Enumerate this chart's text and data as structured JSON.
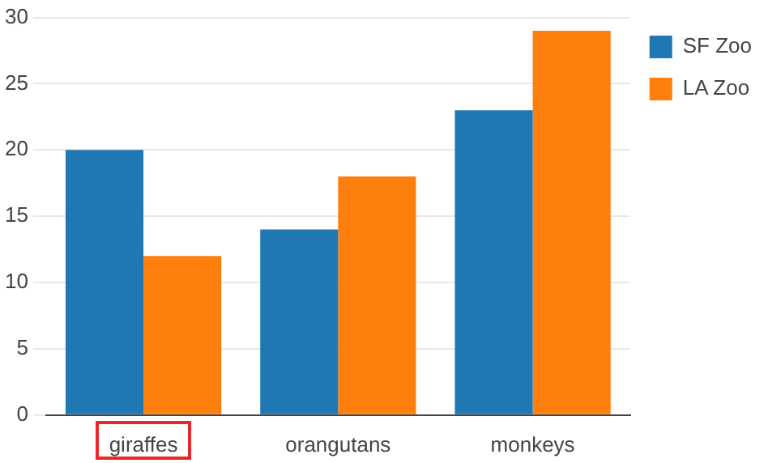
{
  "chart_data": {
    "type": "bar",
    "categories": [
      "giraffes",
      "orangutans",
      "monkeys"
    ],
    "series": [
      {
        "name": "SF Zoo",
        "color": "#1f77b4",
        "values": [
          20,
          14,
          23
        ]
      },
      {
        "name": "LA Zoo",
        "color": "#ff7f0e",
        "values": [
          12,
          18,
          29
        ]
      }
    ],
    "ylim": [
      0,
      30
    ],
    "yticks": [
      0,
      5,
      10,
      15,
      20,
      25,
      30
    ],
    "grid": "y",
    "legend": "top right"
  }
}
